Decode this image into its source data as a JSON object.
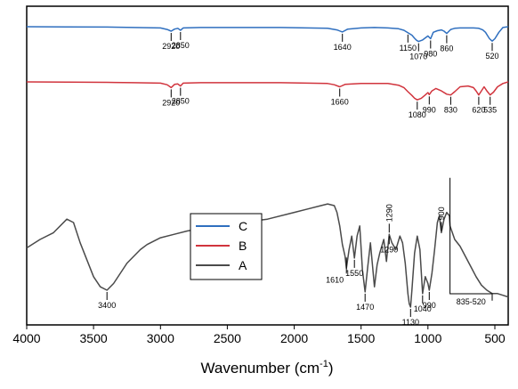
{
  "chart_data": {
    "type": "line",
    "xlabel_main": "Wavenumber (cm",
    "xlabel_sup": "-1",
    "xlabel_tail": ")",
    "ylabel": "",
    "xlim": [
      4000,
      400
    ],
    "x_reversed": true,
    "y_axis": "arbitrary transmittance, no tick labels",
    "grid": false,
    "legend_placement": "center",
    "x_ticks": [
      4000,
      3500,
      3000,
      2500,
      2000,
      1500,
      1000,
      500
    ],
    "x_tick_labels": [
      "4000",
      "3500",
      "3000",
      "2500",
      "2000",
      "1500",
      "1000",
      "500"
    ],
    "colors": {
      "C": "#2f6fbf",
      "B": "#d1343d",
      "A": "#4a4a4a"
    },
    "legend": [
      "C",
      "B",
      "A"
    ],
    "series": [
      {
        "name": "C",
        "x": [
          4000,
          3700,
          3400,
          3200,
          3000,
          2950,
          2920,
          2895,
          2870,
          2850,
          2830,
          2700,
          2500,
          2300,
          2100,
          1900,
          1750,
          1680,
          1640,
          1600,
          1500,
          1400,
          1300,
          1220,
          1180,
          1150,
          1120,
          1100,
          1085,
          1070,
          1040,
          1000,
          980,
          960,
          930,
          900,
          880,
          860,
          830,
          800,
          760,
          700,
          660,
          620,
          590,
          570,
          555,
          540,
          520,
          500,
          470,
          440,
          400
        ],
        "y": [
          0,
          0.5,
          1,
          2,
          3,
          7,
          11,
          6,
          4,
          9,
          3,
          2,
          2,
          2,
          2,
          3,
          4,
          8,
          13,
          6,
          3,
          2,
          3,
          5,
          9,
          15,
          21,
          29,
          34,
          37,
          33,
          23,
          30,
          14,
          10,
          8,
          11,
          17,
          7,
          4,
          3,
          3,
          3,
          4,
          8,
          14,
          22,
          30,
          36,
          30,
          14,
          2,
          0
        ]
      },
      {
        "name": "B",
        "x": [
          4000,
          3700,
          3400,
          3200,
          3000,
          2950,
          2920,
          2895,
          2870,
          2850,
          2830,
          2700,
          2500,
          2300,
          2100,
          1900,
          1750,
          1700,
          1660,
          1620,
          1500,
          1400,
          1300,
          1220,
          1180,
          1150,
          1120,
          1100,
          1080,
          1050,
          1020,
          1000,
          990,
          970,
          940,
          900,
          860,
          830,
          800,
          760,
          700,
          660,
          640,
          620,
          600,
          580,
          560,
          535,
          510,
          480,
          440,
          400
        ],
        "y": [
          0,
          0.5,
          1,
          2,
          3,
          7,
          14,
          6,
          5,
          10,
          3,
          2,
          2,
          2,
          2,
          3,
          4,
          7,
          12,
          6,
          4,
          4,
          4,
          8,
          14,
          24,
          33,
          40,
          44,
          40,
          32,
          26,
          31,
          22,
          16,
          22,
          30,
          32,
          24,
          12,
          10,
          14,
          22,
          32,
          22,
          12,
          22,
          32,
          25,
          12,
          4,
          0
        ]
      },
      {
        "name": "A",
        "x": [
          4000,
          3900,
          3800,
          3700,
          3650,
          3600,
          3550,
          3500,
          3450,
          3400,
          3350,
          3300,
          3250,
          3200,
          3150,
          3100,
          3000,
          2900,
          2800,
          2600,
          2400,
          2200,
          2000,
          1900,
          1800,
          1750,
          1700,
          1680,
          1660,
          1640,
          1620,
          1610,
          1590,
          1570,
          1550,
          1530,
          1510,
          1490,
          1470,
          1450,
          1430,
          1400,
          1380,
          1360,
          1330,
          1310,
          1290,
          1270,
          1240,
          1210,
          1190,
          1170,
          1150,
          1140,
          1130,
          1120,
          1100,
          1080,
          1060,
          1040,
          1020,
          1000,
          990,
          970,
          950,
          930,
          915,
          900,
          880,
          860,
          840,
          835,
          800,
          760,
          720,
          680,
          640,
          600,
          560,
          520,
          480,
          440,
          400
        ],
        "y": [
          65,
          60,
          56,
          48,
          50,
          62,
          72,
          82,
          88,
          90,
          86,
          80,
          74,
          70,
          66,
          63,
          59,
          57,
          55,
          52,
          50,
          48,
          44,
          42,
          40,
          39,
          40,
          44,
          52,
          63,
          70,
          77,
          66,
          58,
          71,
          58,
          52,
          78,
          91,
          76,
          62,
          88,
          75,
          68,
          60,
          73,
          57,
          62,
          66,
          58,
          62,
          74,
          92,
          98,
          100,
          90,
          68,
          58,
          66,
          92,
          82,
          86,
          90,
          80,
          66,
          50,
          46,
          56,
          48,
          44,
          46,
          52,
          60,
          64,
          70,
          76,
          82,
          87,
          90,
          92,
          92,
          93,
          94
        ]
      }
    ],
    "annotations": [
      {
        "series": "C",
        "x": 2920,
        "label": "2920",
        "side": "below"
      },
      {
        "series": "C",
        "x": 2850,
        "label": "2850",
        "side": "below"
      },
      {
        "series": "C",
        "x": 1640,
        "label": "1640",
        "side": "below"
      },
      {
        "series": "C",
        "x": 1150,
        "label": "1150",
        "side": "below"
      },
      {
        "series": "C",
        "x": 1070,
        "label": "1070",
        "side": "below"
      },
      {
        "series": "C",
        "x": 980,
        "label": "980",
        "side": "below"
      },
      {
        "series": "C",
        "x": 860,
        "label": "860",
        "side": "below"
      },
      {
        "series": "C",
        "x": 520,
        "label": "520",
        "side": "below"
      },
      {
        "series": "B",
        "x": 2920,
        "label": "2920",
        "side": "below"
      },
      {
        "series": "B",
        "x": 2850,
        "label": "2850",
        "side": "below"
      },
      {
        "series": "B",
        "x": 1660,
        "label": "1660",
        "side": "below"
      },
      {
        "series": "B",
        "x": 1080,
        "label": "1080",
        "side": "below"
      },
      {
        "series": "B",
        "x": 990,
        "label": "990",
        "side": "below"
      },
      {
        "series": "B",
        "x": 830,
        "label": "830",
        "side": "below"
      },
      {
        "series": "B",
        "x": 620,
        "label": "620",
        "side": "below"
      },
      {
        "series": "B",
        "x": 535,
        "label": "535",
        "side": "below"
      },
      {
        "series": "A",
        "x": 3400,
        "label": "3400",
        "side": "below"
      },
      {
        "series": "A",
        "x": 1610,
        "label": "1610",
        "side": "left"
      },
      {
        "series": "A",
        "x": 1550,
        "label": "1550",
        "side": "below"
      },
      {
        "series": "A",
        "x": 1470,
        "label": "1470",
        "side": "below"
      },
      {
        "series": "A",
        "x": 1290,
        "label": "1290",
        "side": "below"
      },
      {
        "series": "A",
        "x": 1290,
        "label": "1290",
        "side": "above-rotated"
      },
      {
        "series": "A",
        "x": 1130,
        "label": "1130",
        "side": "below"
      },
      {
        "series": "A",
        "x": 1040,
        "label": "1040",
        "side": "below"
      },
      {
        "series": "A",
        "x": 990,
        "label": "990",
        "side": "below"
      },
      {
        "series": "A",
        "x": 900,
        "label": "900",
        "side": "above-rotated"
      }
    ],
    "range_annotation": {
      "series": "A",
      "from": 835,
      "to": 520,
      "label": "835-520"
    }
  }
}
